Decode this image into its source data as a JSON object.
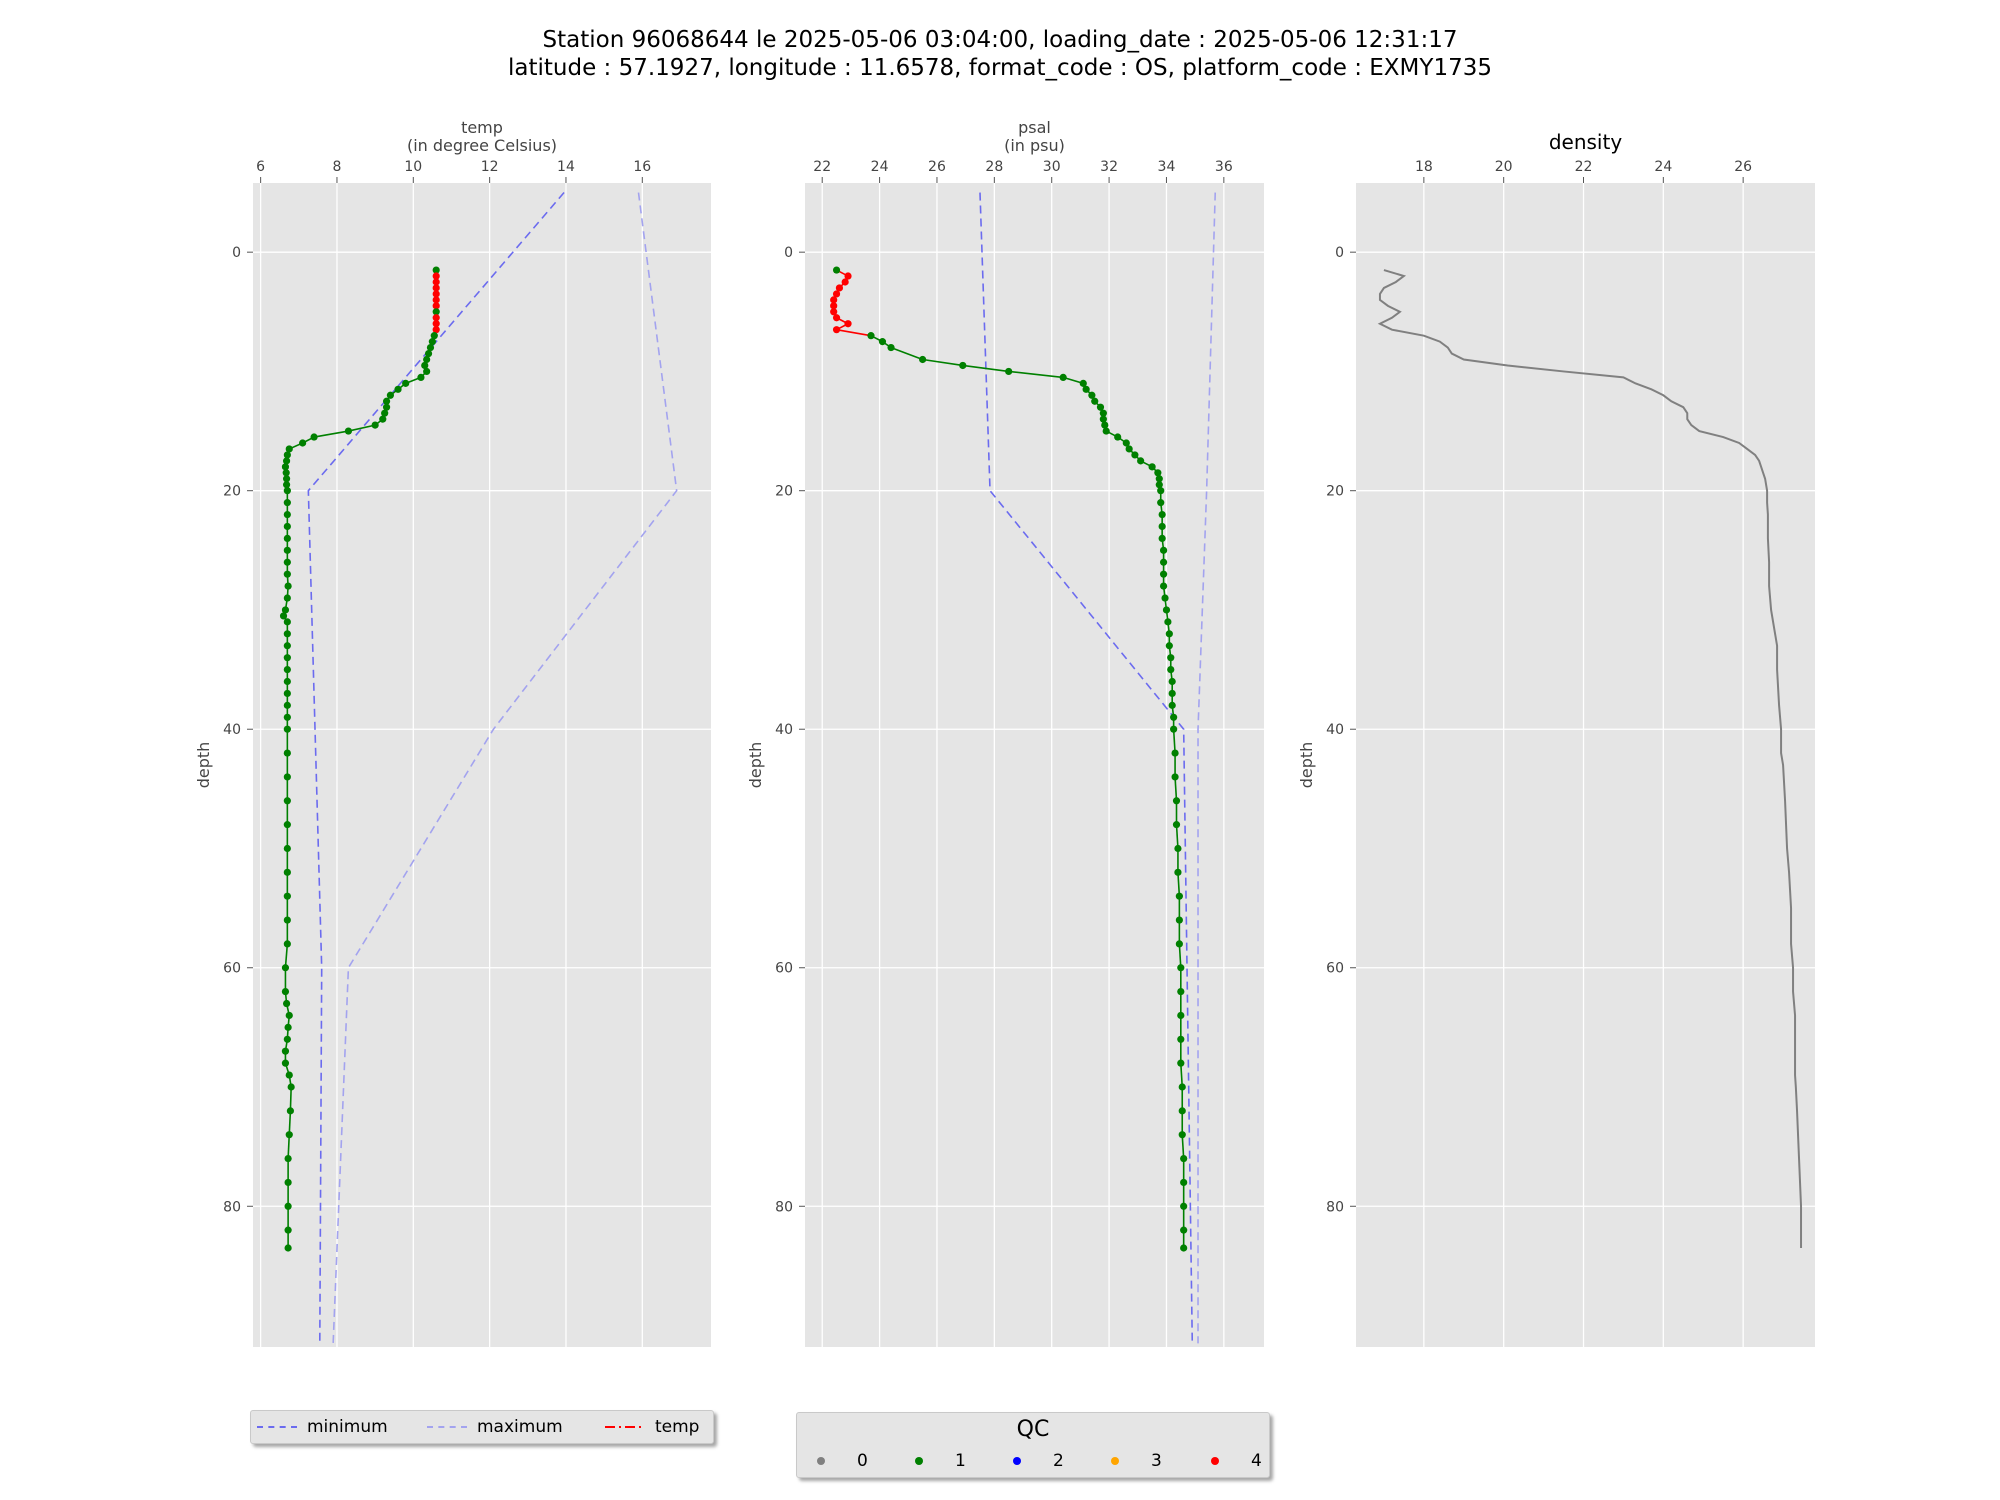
{
  "title": {
    "line1": "Station 96068644 le 2025-05-06 03:04:00, loading_date : 2025-05-06 12:31:17",
    "line2": "latitude : 57.1927, longitude : 11.6578, format_code : OS, platform_code : EXMY1735"
  },
  "colors": {
    "panel_bg": "#e5e5e5",
    "grid": "#ffffff",
    "minimum": "#6b6bef",
    "maximum": "#a3a3ef",
    "qc_line": "#008000",
    "qc_bad": "#ff0000",
    "density_line": "#808080"
  },
  "legends": {
    "lines": [
      {
        "label": "minimum",
        "color": "#6b6bef",
        "style": "dashed"
      },
      {
        "label": "maximum",
        "color": "#a3a3ef",
        "style": "dashed"
      },
      {
        "label": "temp",
        "color": "#ff0000",
        "style": "dashdot"
      }
    ],
    "qc": {
      "title": "QC",
      "items": [
        {
          "label": "0",
          "color": "#808080"
        },
        {
          "label": "1",
          "color": "#008000"
        },
        {
          "label": "2",
          "color": "#0000ff"
        },
        {
          "label": "3",
          "color": "#ffa500"
        },
        {
          "label": "4",
          "color": "#ff0000"
        }
      ]
    }
  },
  "chart_data": [
    {
      "type": "line",
      "id": "temp",
      "xlabel_top": "temp",
      "xlabel_sub": "(in degree Celsius)",
      "ylabel": "depth",
      "xlim": [
        5.8,
        17.8
      ],
      "ylim": [
        -5.8,
        91.8
      ],
      "y_inverted": true,
      "xticks": [
        6,
        8,
        10,
        12,
        14,
        16
      ],
      "yticks": [
        0,
        20,
        40,
        60,
        80
      ],
      "grid": true,
      "minimum": {
        "x": [
          13.95,
          7.25,
          7.6,
          7.55
        ],
        "y": [
          -5,
          20,
          60,
          91.5
        ]
      },
      "maximum": {
        "x": [
          15.9,
          16.9,
          12.1,
          8.3,
          7.9
        ],
        "y": [
          -5,
          20,
          40,
          60,
          91.5
        ]
      },
      "profile": {
        "depth": [
          1.5,
          2.0,
          2.5,
          3.0,
          3.5,
          4.0,
          4.5,
          5.0,
          5.5,
          6.0,
          6.5,
          7.0,
          7.5,
          8.0,
          8.5,
          9.0,
          9.5,
          10.0,
          10.5,
          11.0,
          11.5,
          12.0,
          12.5,
          13.0,
          13.5,
          14.0,
          14.5,
          15.0,
          15.5,
          16.0,
          16.5,
          17.0,
          17.5,
          18.0,
          18.5,
          19.0,
          19.5,
          20.0,
          21.0,
          22.0,
          23.0,
          24.0,
          25.0,
          26.0,
          27.0,
          28.0,
          29.0,
          30.0,
          30.5,
          31.0,
          32.0,
          33.0,
          34.0,
          35.0,
          36.0,
          37.0,
          38.0,
          39.0,
          40.0,
          42.0,
          44.0,
          46.0,
          48.0,
          50.0,
          52.0,
          54.0,
          56.0,
          58.0,
          60.0,
          62.0,
          63.0,
          64.0,
          65.0,
          66.0,
          67.0,
          68.0,
          69.0,
          70.0,
          72.0,
          74.0,
          76.0,
          78.0,
          80.0,
          82.0,
          83.5
        ],
        "temp": [
          10.6,
          10.6,
          10.6,
          10.6,
          10.6,
          10.6,
          10.6,
          10.6,
          10.6,
          10.6,
          10.6,
          10.55,
          10.5,
          10.45,
          10.4,
          10.35,
          10.3,
          10.35,
          10.2,
          9.8,
          9.6,
          9.4,
          9.3,
          9.3,
          9.25,
          9.2,
          9.0,
          8.3,
          7.4,
          7.1,
          6.75,
          6.7,
          6.68,
          6.65,
          6.67,
          6.68,
          6.68,
          6.7,
          6.7,
          6.7,
          6.7,
          6.7,
          6.7,
          6.7,
          6.7,
          6.72,
          6.7,
          6.65,
          6.6,
          6.7,
          6.7,
          6.7,
          6.7,
          6.7,
          6.7,
          6.7,
          6.7,
          6.7,
          6.7,
          6.7,
          6.7,
          6.7,
          6.7,
          6.7,
          6.7,
          6.7,
          6.7,
          6.7,
          6.65,
          6.65,
          6.68,
          6.75,
          6.72,
          6.7,
          6.65,
          6.65,
          6.75,
          6.8,
          6.78,
          6.75,
          6.72,
          6.72,
          6.72,
          6.72,
          6.72
        ],
        "qc": [
          1,
          4,
          4,
          4,
          4,
          4,
          4,
          1,
          4,
          4,
          4,
          1,
          1,
          1,
          1,
          1,
          1,
          1,
          1,
          1,
          1,
          1,
          1,
          1,
          1,
          1,
          1,
          1,
          1,
          1,
          1,
          1,
          1,
          1,
          1,
          1,
          1,
          1,
          1,
          1,
          1,
          1,
          1,
          1,
          1,
          1,
          1,
          1,
          1,
          1,
          1,
          1,
          1,
          1,
          1,
          1,
          1,
          1,
          1,
          1,
          1,
          1,
          1,
          1,
          1,
          1,
          1,
          1,
          1,
          1,
          1,
          1,
          1,
          1,
          1,
          1,
          1,
          1,
          1,
          1,
          1,
          1,
          1,
          1,
          1
        ]
      }
    },
    {
      "type": "line",
      "id": "psal",
      "xlabel_top": "psal",
      "xlabel_sub": "(in psu)",
      "ylabel": "depth",
      "xlim": [
        21.4,
        37.4
      ],
      "ylim": [
        -5.8,
        91.8
      ],
      "y_inverted": true,
      "xticks": [
        22,
        24,
        26,
        28,
        30,
        32,
        34,
        36
      ],
      "yticks": [
        0,
        20,
        40,
        60,
        80
      ],
      "grid": true,
      "minimum": {
        "x": [
          27.5,
          27.85,
          34.6,
          34.9
        ],
        "y": [
          -5,
          20,
          40,
          91.5
        ]
      },
      "maximum": {
        "x": [
          35.7,
          35.4,
          35.1,
          35.1
        ],
        "y": [
          -5,
          20,
          40,
          91.5
        ]
      },
      "profile": {
        "depth": [
          1.5,
          2.0,
          2.5,
          3.0,
          3.5,
          4.0,
          4.5,
          5.0,
          5.5,
          6.0,
          6.5,
          7.0,
          7.5,
          8.0,
          9.0,
          9.5,
          10.0,
          10.5,
          11.0,
          11.5,
          12.0,
          12.5,
          13.0,
          13.5,
          14.0,
          14.5,
          15.0,
          15.5,
          16.0,
          16.5,
          17.0,
          17.5,
          18.0,
          18.5,
          19.0,
          19.5,
          20.0,
          21.0,
          22.0,
          23.0,
          24.0,
          25.0,
          26.0,
          27.0,
          28.0,
          29.0,
          30.0,
          31.0,
          32.0,
          33.0,
          34.0,
          35.0,
          36.0,
          37.0,
          38.0,
          39.0,
          40.0,
          42.0,
          44.0,
          46.0,
          48.0,
          50.0,
          52.0,
          54.0,
          56.0,
          58.0,
          60.0,
          62.0,
          64.0,
          66.0,
          68.0,
          70.0,
          72.0,
          74.0,
          76.0,
          78.0,
          80.0,
          82.0,
          83.5
        ],
        "psal": [
          22.5,
          22.9,
          22.8,
          22.6,
          22.5,
          22.4,
          22.4,
          22.4,
          22.5,
          22.9,
          22.5,
          23.7,
          24.1,
          24.4,
          25.5,
          26.9,
          28.5,
          30.4,
          31.1,
          31.2,
          31.4,
          31.5,
          31.7,
          31.8,
          31.8,
          31.85,
          31.9,
          32.3,
          32.6,
          32.7,
          32.9,
          33.1,
          33.5,
          33.7,
          33.75,
          33.75,
          33.8,
          33.8,
          33.85,
          33.85,
          33.85,
          33.9,
          33.9,
          33.9,
          33.9,
          33.95,
          34.0,
          34.05,
          34.1,
          34.1,
          34.15,
          34.15,
          34.2,
          34.2,
          34.2,
          34.25,
          34.25,
          34.3,
          34.3,
          34.35,
          34.35,
          34.4,
          34.4,
          34.45,
          34.45,
          34.45,
          34.5,
          34.5,
          34.5,
          34.5,
          34.5,
          34.55,
          34.55,
          34.55,
          34.6,
          34.6,
          34.6,
          34.6,
          34.6
        ],
        "qc": [
          1,
          4,
          4,
          4,
          4,
          4,
          4,
          4,
          4,
          4,
          4,
          1,
          1,
          1,
          1,
          1,
          1,
          1,
          1,
          1,
          1,
          1,
          1,
          1,
          1,
          1,
          1,
          1,
          1,
          1,
          1,
          1,
          1,
          1,
          1,
          1,
          1,
          1,
          1,
          1,
          1,
          1,
          1,
          1,
          1,
          1,
          1,
          1,
          1,
          1,
          1,
          1,
          1,
          1,
          1,
          1,
          1,
          1,
          1,
          1,
          1,
          1,
          1,
          1,
          1,
          1,
          1,
          1,
          1,
          1,
          1,
          1,
          1,
          1,
          1,
          1,
          1,
          1,
          1
        ]
      }
    },
    {
      "type": "line",
      "id": "density",
      "title": "density",
      "xlabel_top": "",
      "xlabel_sub": "",
      "ylabel": "depth",
      "xlim": [
        16.3,
        27.8
      ],
      "ylim": [
        -5.8,
        91.8
      ],
      "y_inverted": true,
      "xticks": [
        18,
        20,
        22,
        24,
        26
      ],
      "yticks": [
        0,
        20,
        40,
        60,
        80
      ],
      "grid": true,
      "series": [
        {
          "x": [
            17.0,
            17.5,
            17.3,
            17.0,
            16.9,
            16.9,
            17.1,
            17.4,
            17.2,
            16.9,
            17.2,
            18.0,
            18.4,
            18.6,
            18.7,
            19.0,
            20.1,
            21.5,
            23.0,
            23.3,
            23.7,
            24.0,
            24.2,
            24.5,
            24.6,
            24.6,
            24.7,
            24.9,
            25.5,
            25.9,
            26.1,
            26.3,
            26.4,
            26.45,
            26.5,
            26.55,
            26.6,
            26.6,
            26.62,
            26.62,
            26.65,
            26.65,
            26.7,
            26.8,
            26.85,
            26.85,
            26.9,
            26.95,
            26.95,
            27.0,
            27.05,
            27.1,
            27.15,
            27.2,
            27.2,
            27.25,
            27.25,
            27.3,
            27.3,
            27.3,
            27.3,
            27.32,
            27.35,
            27.4,
            27.45,
            27.45
          ],
          "y": [
            1.5,
            2.0,
            2.5,
            3.0,
            3.5,
            4.0,
            4.5,
            5.0,
            5.5,
            6.0,
            6.5,
            7.0,
            7.5,
            8.0,
            8.5,
            9.0,
            9.5,
            10.0,
            10.5,
            11.0,
            11.5,
            12.0,
            12.5,
            13.0,
            13.5,
            14.0,
            14.5,
            15.0,
            15.5,
            16.0,
            16.5,
            17.0,
            17.5,
            18.0,
            18.5,
            19.0,
            20.0,
            21.0,
            22.0,
            24.0,
            26.0,
            28.0,
            30.0,
            32.0,
            33.0,
            35.0,
            38.0,
            40.0,
            42.0,
            43.0,
            46.0,
            50.0,
            52.0,
            55.0,
            58.0,
            60.0,
            62.0,
            64.0,
            66.0,
            68.0,
            69.0,
            70.0,
            72.0,
            76.0,
            80.0,
            83.5
          ]
        }
      ]
    }
  ]
}
